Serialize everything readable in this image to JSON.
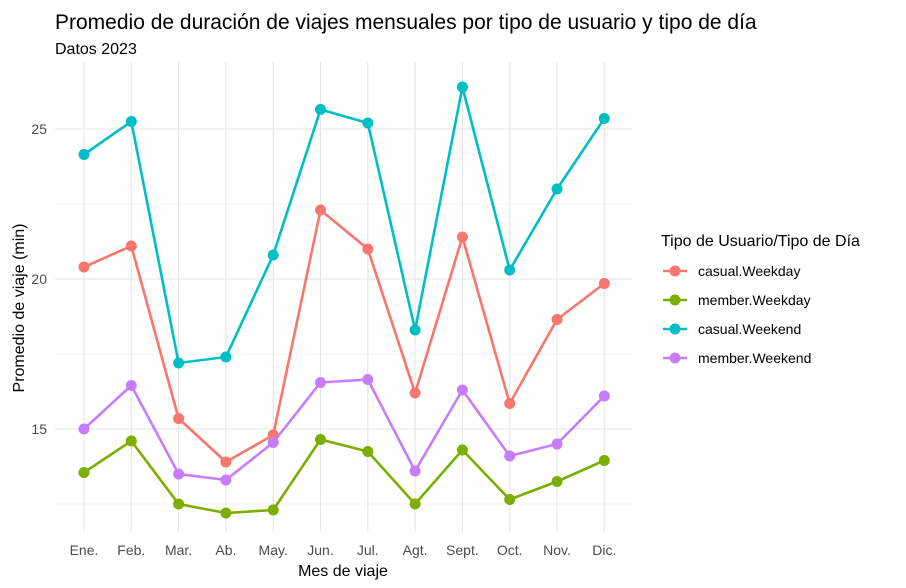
{
  "chart_data": {
    "type": "line",
    "title": "Promedio de duración de viajes mensuales por tipo de usuario y tipo de día",
    "subtitle": "Datos 2023",
    "xlabel": "Mes de viaje",
    "ylabel": "Promedio de viaje (min)",
    "categories": [
      "Ene.",
      "Feb.",
      "Mar.",
      "Ab.",
      "May.",
      "Jun.",
      "Jul.",
      "Agt.",
      "Sept.",
      "Oct.",
      "Nov.",
      "Dic."
    ],
    "ylim": [
      11.5,
      27.0
    ],
    "yticks": [
      15,
      20,
      25
    ],
    "grid": true,
    "legend": {
      "title": "Tipo de Usuario/Tipo de Día",
      "position": "right"
    },
    "series": [
      {
        "name": "casual.Weekday",
        "color": "#F8766D",
        "values": [
          20.4,
          21.1,
          15.35,
          13.9,
          14.8,
          22.3,
          21.0,
          16.2,
          21.4,
          15.85,
          18.65,
          19.85
        ]
      },
      {
        "name": "member.Weekday",
        "color": "#7CAE00",
        "values": [
          13.55,
          14.6,
          12.5,
          12.2,
          12.3,
          14.65,
          14.25,
          12.5,
          14.3,
          12.65,
          13.25,
          13.95
        ]
      },
      {
        "name": "casual.Weekend",
        "color": "#00BFC4",
        "values": [
          24.15,
          25.25,
          17.2,
          17.4,
          20.8,
          25.65,
          25.2,
          18.3,
          26.4,
          20.3,
          23.0,
          25.35
        ]
      },
      {
        "name": "member.Weekend",
        "color": "#C77CFF",
        "values": [
          15.0,
          16.45,
          13.5,
          13.3,
          14.55,
          16.55,
          16.65,
          13.6,
          16.3,
          14.1,
          14.5,
          16.1
        ]
      }
    ]
  }
}
